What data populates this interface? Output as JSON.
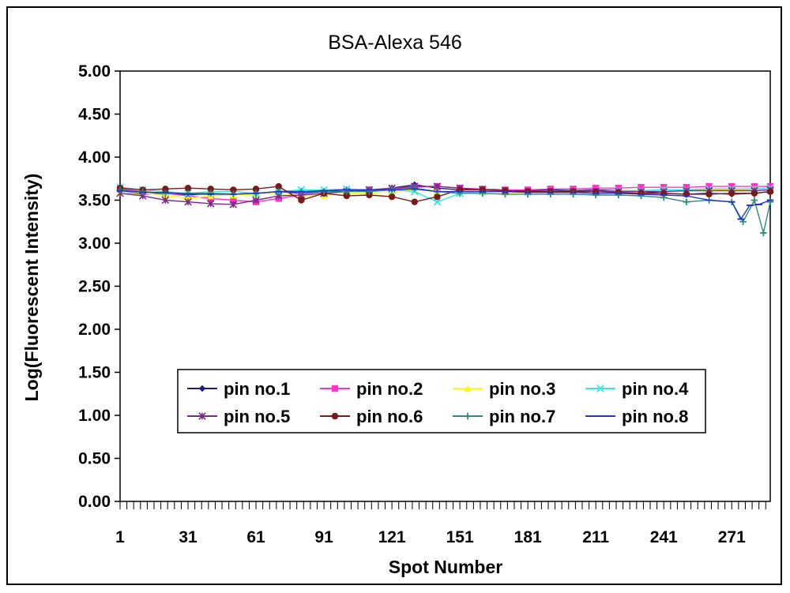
{
  "chart_data": {
    "type": "line",
    "title": "BSA-Alexa 546",
    "xlabel": "Spot Number",
    "ylabel": "Log(Fluorescent Intensity)",
    "xlim": [
      1,
      288
    ],
    "ylim": [
      0,
      5
    ],
    "y_ticks": [
      "0.00",
      "0.50",
      "1.00",
      "1.50",
      "2.00",
      "2.50",
      "3.00",
      "3.50",
      "4.00",
      "4.50",
      "5.00"
    ],
    "x_ticks": [
      "1",
      "31",
      "61",
      "91",
      "121",
      "151",
      "181",
      "211",
      "241",
      "271"
    ],
    "grid": false,
    "legend_position": "lower-center",
    "series": [
      {
        "name": "pin no.1",
        "color": "#1a1a80",
        "marker": "diamond",
        "points": [
          [
            1,
            3.6
          ],
          [
            11,
            3.57
          ],
          [
            21,
            3.58
          ],
          [
            31,
            3.56
          ],
          [
            41,
            3.58
          ],
          [
            51,
            3.57
          ],
          [
            61,
            3.58
          ],
          [
            71,
            3.6
          ],
          [
            81,
            3.58
          ],
          [
            91,
            3.6
          ],
          [
            101,
            3.62
          ],
          [
            111,
            3.6
          ],
          [
            121,
            3.64
          ],
          [
            131,
            3.68
          ],
          [
            141,
            3.64
          ],
          [
            151,
            3.62
          ],
          [
            161,
            3.63
          ],
          [
            171,
            3.62
          ],
          [
            181,
            3.61
          ],
          [
            191,
            3.62
          ],
          [
            201,
            3.61
          ],
          [
            211,
            3.62
          ],
          [
            221,
            3.61
          ],
          [
            231,
            3.6
          ],
          [
            241,
            3.58
          ],
          [
            251,
            3.57
          ],
          [
            261,
            3.58
          ],
          [
            271,
            3.57
          ],
          [
            281,
            3.58
          ],
          [
            288,
            3.6
          ]
        ]
      },
      {
        "name": "pin no.2",
        "color": "#ff33cc",
        "marker": "square",
        "points": [
          [
            1,
            3.63
          ],
          [
            11,
            3.6
          ],
          [
            21,
            3.58
          ],
          [
            31,
            3.55
          ],
          [
            41,
            3.52
          ],
          [
            51,
            3.5
          ],
          [
            61,
            3.48
          ],
          [
            71,
            3.52
          ],
          [
            81,
            3.56
          ],
          [
            91,
            3.58
          ],
          [
            101,
            3.6
          ],
          [
            111,
            3.62
          ],
          [
            121,
            3.63
          ],
          [
            131,
            3.65
          ],
          [
            141,
            3.66
          ],
          [
            151,
            3.64
          ],
          [
            161,
            3.63
          ],
          [
            171,
            3.62
          ],
          [
            181,
            3.62
          ],
          [
            191,
            3.63
          ],
          [
            201,
            3.63
          ],
          [
            211,
            3.64
          ],
          [
            221,
            3.64
          ],
          [
            231,
            3.65
          ],
          [
            241,
            3.65
          ],
          [
            251,
            3.65
          ],
          [
            261,
            3.66
          ],
          [
            271,
            3.66
          ],
          [
            281,
            3.66
          ],
          [
            288,
            3.66
          ]
        ]
      },
      {
        "name": "pin no.3",
        "color": "#ffff00",
        "marker": "triangle",
        "points": [
          [
            1,
            3.6
          ],
          [
            11,
            3.58
          ],
          [
            21,
            3.56
          ],
          [
            31,
            3.52
          ],
          [
            41,
            3.55
          ],
          [
            51,
            3.56
          ],
          [
            61,
            3.57
          ],
          [
            71,
            3.58
          ],
          [
            81,
            3.55
          ],
          [
            91,
            3.56
          ],
          [
            101,
            3.58
          ],
          [
            111,
            3.58
          ],
          [
            121,
            3.6
          ],
          [
            131,
            3.62
          ],
          [
            141,
            3.6
          ],
          [
            151,
            3.6
          ],
          [
            161,
            3.6
          ],
          [
            171,
            3.59
          ],
          [
            181,
            3.59
          ],
          [
            191,
            3.6
          ],
          [
            201,
            3.6
          ],
          [
            211,
            3.6
          ],
          [
            221,
            3.61
          ],
          [
            231,
            3.61
          ],
          [
            241,
            3.62
          ],
          [
            251,
            3.62
          ],
          [
            261,
            3.62
          ],
          [
            271,
            3.62
          ],
          [
            281,
            3.63
          ],
          [
            288,
            3.63
          ]
        ]
      },
      {
        "name": "pin no.4",
        "color": "#33e6e6",
        "marker": "x",
        "points": [
          [
            1,
            3.65
          ],
          [
            11,
            3.62
          ],
          [
            21,
            3.6
          ],
          [
            31,
            3.58
          ],
          [
            41,
            3.6
          ],
          [
            51,
            3.6
          ],
          [
            61,
            3.58
          ],
          [
            71,
            3.6
          ],
          [
            81,
            3.62
          ],
          [
            91,
            3.62
          ],
          [
            101,
            3.63
          ],
          [
            111,
            3.62
          ],
          [
            121,
            3.62
          ],
          [
            131,
            3.6
          ],
          [
            141,
            3.48
          ],
          [
            151,
            3.58
          ],
          [
            161,
            3.6
          ],
          [
            171,
            3.6
          ],
          [
            181,
            3.6
          ],
          [
            191,
            3.6
          ],
          [
            201,
            3.6
          ],
          [
            211,
            3.6
          ],
          [
            221,
            3.61
          ],
          [
            231,
            3.61
          ],
          [
            241,
            3.62
          ],
          [
            251,
            3.62
          ],
          [
            261,
            3.63
          ],
          [
            271,
            3.63
          ],
          [
            281,
            3.63
          ],
          [
            288,
            3.64
          ]
        ]
      },
      {
        "name": "pin no.5",
        "color": "#7a2a8c",
        "marker": "star",
        "points": [
          [
            1,
            3.58
          ],
          [
            11,
            3.55
          ],
          [
            21,
            3.5
          ],
          [
            31,
            3.48
          ],
          [
            41,
            3.46
          ],
          [
            51,
            3.45
          ],
          [
            61,
            3.5
          ],
          [
            71,
            3.55
          ],
          [
            81,
            3.56
          ],
          [
            91,
            3.58
          ],
          [
            101,
            3.6
          ],
          [
            111,
            3.62
          ],
          [
            121,
            3.64
          ],
          [
            131,
            3.66
          ],
          [
            141,
            3.66
          ],
          [
            151,
            3.64
          ],
          [
            161,
            3.62
          ],
          [
            171,
            3.61
          ],
          [
            181,
            3.6
          ],
          [
            191,
            3.6
          ],
          [
            201,
            3.6
          ],
          [
            211,
            3.6
          ],
          [
            221,
            3.6
          ],
          [
            231,
            3.6
          ],
          [
            241,
            3.6
          ],
          [
            251,
            3.61
          ],
          [
            261,
            3.61
          ],
          [
            271,
            3.61
          ],
          [
            281,
            3.61
          ],
          [
            288,
            3.62
          ]
        ]
      },
      {
        "name": "pin no.6",
        "color": "#7a1a1a",
        "marker": "circle",
        "points": [
          [
            1,
            3.64
          ],
          [
            11,
            3.62
          ],
          [
            21,
            3.63
          ],
          [
            31,
            3.64
          ],
          [
            41,
            3.63
          ],
          [
            51,
            3.62
          ],
          [
            61,
            3.63
          ],
          [
            71,
            3.66
          ],
          [
            81,
            3.5
          ],
          [
            91,
            3.58
          ],
          [
            101,
            3.55
          ],
          [
            111,
            3.56
          ],
          [
            121,
            3.54
          ],
          [
            131,
            3.48
          ],
          [
            141,
            3.54
          ],
          [
            151,
            3.62
          ],
          [
            161,
            3.62
          ],
          [
            171,
            3.61
          ],
          [
            181,
            3.6
          ],
          [
            191,
            3.6
          ],
          [
            201,
            3.6
          ],
          [
            211,
            3.6
          ],
          [
            221,
            3.59
          ],
          [
            231,
            3.58
          ],
          [
            241,
            3.58
          ],
          [
            251,
            3.57
          ],
          [
            261,
            3.57
          ],
          [
            271,
            3.58
          ],
          [
            281,
            3.58
          ],
          [
            288,
            3.6
          ]
        ]
      },
      {
        "name": "pin no.7",
        "color": "#2e8b7a",
        "marker": "plus",
        "points": [
          [
            1,
            3.62
          ],
          [
            11,
            3.6
          ],
          [
            21,
            3.58
          ],
          [
            31,
            3.58
          ],
          [
            41,
            3.58
          ],
          [
            51,
            3.57
          ],
          [
            61,
            3.58
          ],
          [
            71,
            3.6
          ],
          [
            81,
            3.6
          ],
          [
            91,
            3.6
          ],
          [
            101,
            3.6
          ],
          [
            111,
            3.6
          ],
          [
            121,
            3.62
          ],
          [
            131,
            3.64
          ],
          [
            141,
            3.6
          ],
          [
            151,
            3.58
          ],
          [
            161,
            3.58
          ],
          [
            171,
            3.57
          ],
          [
            181,
            3.57
          ],
          [
            191,
            3.57
          ],
          [
            201,
            3.57
          ],
          [
            211,
            3.56
          ],
          [
            221,
            3.56
          ],
          [
            231,
            3.55
          ],
          [
            241,
            3.53
          ],
          [
            251,
            3.48
          ],
          [
            261,
            3.5
          ],
          [
            271,
            3.48
          ],
          [
            276,
            3.25
          ],
          [
            281,
            3.5
          ],
          [
            285,
            3.12
          ],
          [
            288,
            3.48
          ]
        ]
      },
      {
        "name": "pin no.8",
        "color": "#2233cc",
        "marker": "line",
        "points": [
          [
            1,
            3.61
          ],
          [
            11,
            3.59
          ],
          [
            21,
            3.59
          ],
          [
            31,
            3.57
          ],
          [
            41,
            3.57
          ],
          [
            51,
            3.57
          ],
          [
            61,
            3.58
          ],
          [
            71,
            3.6
          ],
          [
            81,
            3.6
          ],
          [
            91,
            3.61
          ],
          [
            101,
            3.62
          ],
          [
            111,
            3.62
          ],
          [
            121,
            3.62
          ],
          [
            131,
            3.63
          ],
          [
            141,
            3.6
          ],
          [
            151,
            3.6
          ],
          [
            161,
            3.6
          ],
          [
            171,
            3.6
          ],
          [
            181,
            3.59
          ],
          [
            191,
            3.59
          ],
          [
            201,
            3.59
          ],
          [
            211,
            3.58
          ],
          [
            221,
            3.58
          ],
          [
            231,
            3.57
          ],
          [
            241,
            3.56
          ],
          [
            251,
            3.55
          ],
          [
            261,
            3.5
          ],
          [
            271,
            3.48
          ],
          [
            275,
            3.28
          ],
          [
            279,
            3.44
          ],
          [
            283,
            3.45
          ],
          [
            288,
            3.5
          ]
        ]
      }
    ]
  }
}
